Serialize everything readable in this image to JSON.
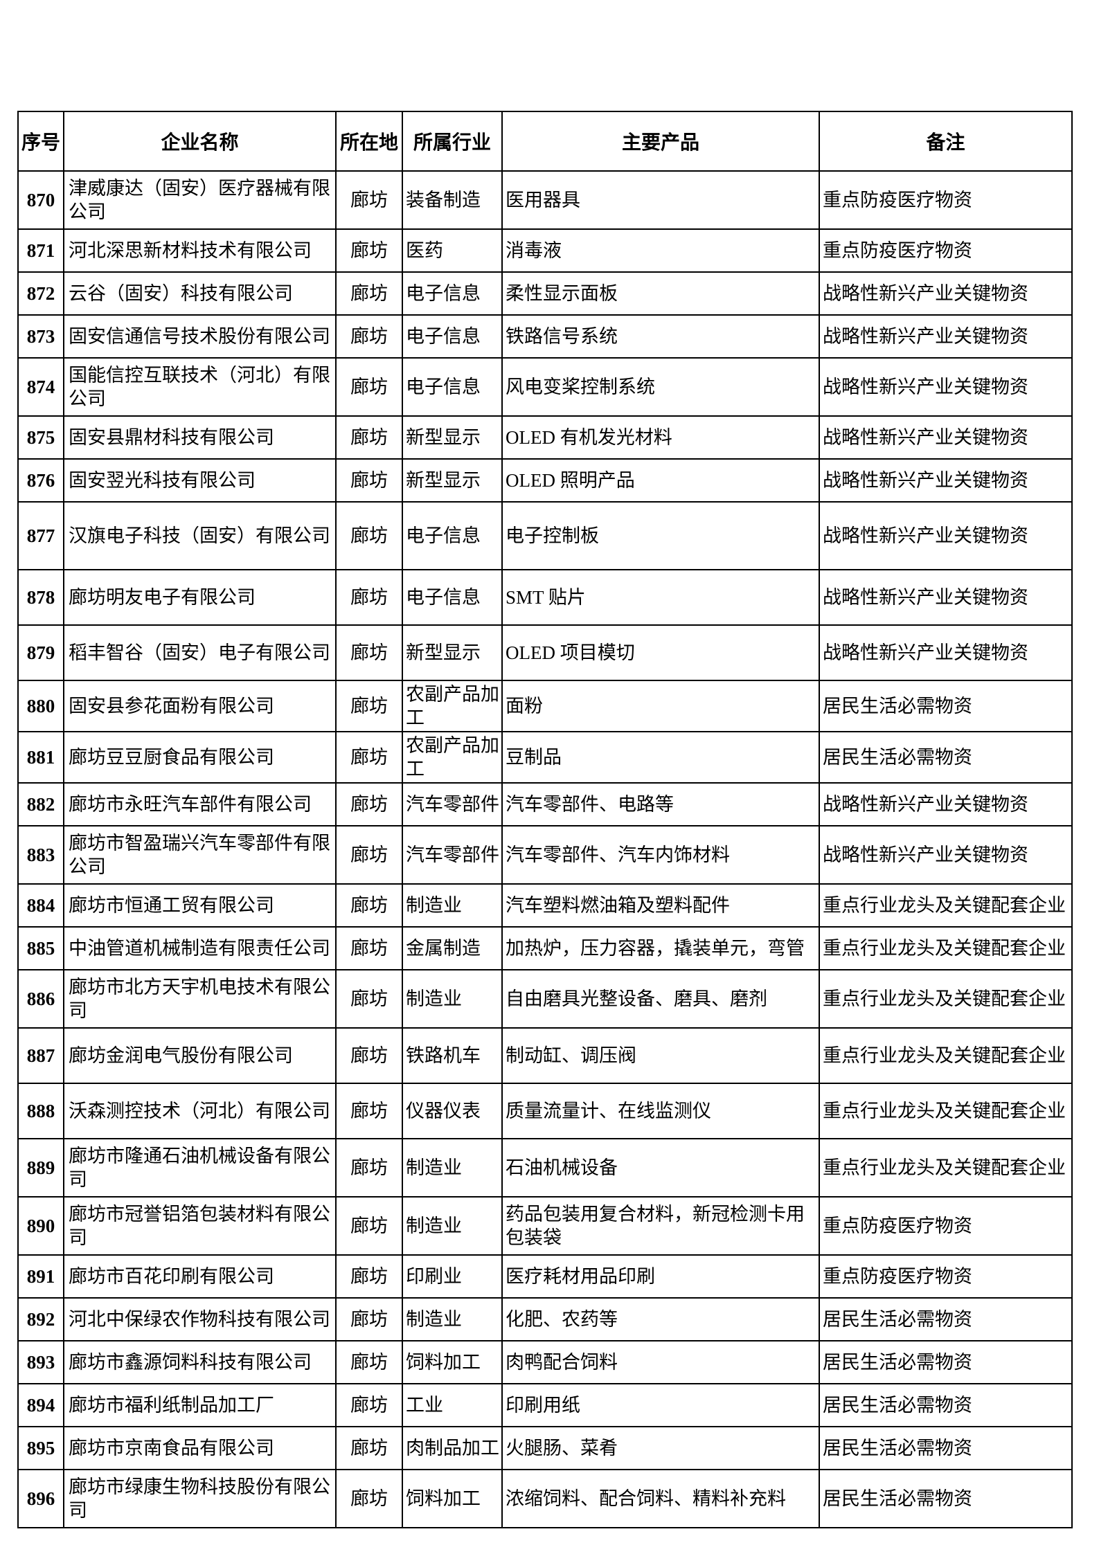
{
  "page": {
    "paper_color": "#ffffff",
    "ink_color": "#000000"
  },
  "table": {
    "columns": [
      {
        "key": "index",
        "label": "序号"
      },
      {
        "key": "name",
        "label": "企业名称"
      },
      {
        "key": "location",
        "label": "所在地"
      },
      {
        "key": "industry",
        "label": "所属行业"
      },
      {
        "key": "products",
        "label": "主要产品"
      },
      {
        "key": "remark",
        "label": "备注"
      }
    ],
    "rows": [
      {
        "index": "870",
        "name": "津威康达（固安）医疗器械有限公司",
        "location": "廊坊",
        "industry": "装备制造",
        "products": "医用器具",
        "remark": "重点防疫医疗物资"
      },
      {
        "index": "871",
        "name": "河北深思新材料技术有限公司",
        "location": "廊坊",
        "industry": "医药",
        "products": "消毒液",
        "remark": "重点防疫医疗物资"
      },
      {
        "index": "872",
        "name": "云谷（固安）科技有限公司",
        "location": "廊坊",
        "industry": "电子信息",
        "products": "柔性显示面板",
        "remark": "战略性新兴产业关键物资"
      },
      {
        "index": "873",
        "name": "固安信通信号技术股份有限公司",
        "location": "廊坊",
        "industry": "电子信息",
        "products": "铁路信号系统",
        "remark": "战略性新兴产业关键物资"
      },
      {
        "index": "874",
        "name": "国能信控互联技术（河北）有限公司",
        "location": "廊坊",
        "industry": "电子信息",
        "products": "风电变桨控制系统",
        "remark": "战略性新兴产业关键物资"
      },
      {
        "index": "875",
        "name": "固安县鼎材科技有限公司",
        "location": "廊坊",
        "industry": "新型显示",
        "products": "OLED 有机发光材料",
        "remark": "战略性新兴产业关键物资"
      },
      {
        "index": "876",
        "name": "固安翌光科技有限公司",
        "location": "廊坊",
        "industry": "新型显示",
        "products": "OLED 照明产品",
        "remark": "战略性新兴产业关键物资"
      },
      {
        "index": "877",
        "name": "汉旗电子科技（固安）有限公司",
        "location": "廊坊",
        "industry": "电子信息",
        "products": "电子控制板",
        "remark": "战略性新兴产业关键物资"
      },
      {
        "index": "878",
        "name": "廊坊明友电子有限公司",
        "location": "廊坊",
        "industry": "电子信息",
        "products": "SMT 贴片",
        "remark": "战略性新兴产业关键物资"
      },
      {
        "index": "879",
        "name": "稻丰智谷（固安）电子有限公司",
        "location": "廊坊",
        "industry": "新型显示",
        "products": "OLED 项目模切",
        "remark": "战略性新兴产业关键物资"
      },
      {
        "index": "880",
        "name": "固安县参花面粉有限公司",
        "location": "廊坊",
        "industry": "农副产品加工",
        "products": "面粉",
        "remark": "居民生活必需物资"
      },
      {
        "index": "881",
        "name": "廊坊豆豆厨食品有限公司",
        "location": "廊坊",
        "industry": "农副产品加工",
        "products": "豆制品",
        "remark": "居民生活必需物资"
      },
      {
        "index": "882",
        "name": "廊坊市永旺汽车部件有限公司",
        "location": "廊坊",
        "industry": "汽车零部件",
        "products": "汽车零部件、电路等",
        "remark": "战略性新兴产业关键物资"
      },
      {
        "index": "883",
        "name": "廊坊市智盈瑞兴汽车零部件有限公司",
        "location": "廊坊",
        "industry": "汽车零部件",
        "products": "汽车零部件、汽车内饰材料",
        "remark": "战略性新兴产业关键物资"
      },
      {
        "index": "884",
        "name": "廊坊市恒通工贸有限公司",
        "location": "廊坊",
        "industry": "制造业",
        "products": "汽车塑料燃油箱及塑料配件",
        "remark": "重点行业龙头及关键配套企业"
      },
      {
        "index": "885",
        "name": "中油管道机械制造有限责任公司",
        "location": "廊坊",
        "industry": "金属制造",
        "products": "加热炉，压力容器，撬装单元，弯管",
        "remark": "重点行业龙头及关键配套企业"
      },
      {
        "index": "886",
        "name": "廊坊市北方天宇机电技术有限公司",
        "location": "廊坊",
        "industry": "制造业",
        "products": "自由磨具光整设备、磨具、磨剂",
        "remark": "重点行业龙头及关键配套企业"
      },
      {
        "index": "887",
        "name": "廊坊金润电气股份有限公司",
        "location": "廊坊",
        "industry": "铁路机车",
        "products": "制动缸、调压阀",
        "remark": "重点行业龙头及关键配套企业"
      },
      {
        "index": "888",
        "name": "沃森测控技术（河北）有限公司",
        "location": "廊坊",
        "industry": "仪器仪表",
        "products": "质量流量计、在线监测仪",
        "remark": "重点行业龙头及关键配套企业"
      },
      {
        "index": "889",
        "name": "廊坊市隆通石油机械设备有限公司",
        "location": "廊坊",
        "industry": "制造业",
        "products": "石油机械设备",
        "remark": "重点行业龙头及关键配套企业"
      },
      {
        "index": "890",
        "name": "廊坊市冠誉铝箔包装材料有限公司",
        "location": "廊坊",
        "industry": "制造业",
        "products": "药品包装用复合材料，新冠检测卡用包装袋",
        "remark": "重点防疫医疗物资"
      },
      {
        "index": "891",
        "name": "廊坊市百花印刷有限公司",
        "location": "廊坊",
        "industry": "印刷业",
        "products": "医疗耗材用品印刷",
        "remark": "重点防疫医疗物资"
      },
      {
        "index": "892",
        "name": "河北中保绿农作物科技有限公司",
        "location": "廊坊",
        "industry": "制造业",
        "products": "化肥、农药等",
        "remark": "居民生活必需物资"
      },
      {
        "index": "893",
        "name": "廊坊市鑫源饲料科技有限公司",
        "location": "廊坊",
        "industry": "饲料加工",
        "products": "肉鸭配合饲料",
        "remark": "居民生活必需物资"
      },
      {
        "index": "894",
        "name": "廊坊市福利纸制品加工厂",
        "location": "廊坊",
        "industry": "工业",
        "products": "印刷用纸",
        "remark": "居民生活必需物资"
      },
      {
        "index": "895",
        "name": "廊坊市京南食品有限公司",
        "location": "廊坊",
        "industry": "肉制品加工",
        "products": "火腿肠、菜肴",
        "remark": "居民生活必需物资"
      },
      {
        "index": "896",
        "name": "廊坊市绿康生物科技股份有限公司",
        "location": "廊坊",
        "industry": "饲料加工",
        "products": "浓缩饲料、配合饲料、精料补充料",
        "remark": "居民生活必需物资"
      }
    ]
  }
}
